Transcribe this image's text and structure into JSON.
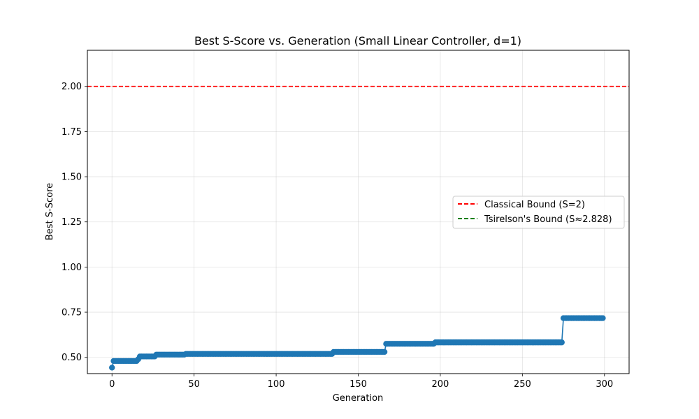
{
  "chart_data": {
    "type": "line",
    "title": "Best S-Score vs. Generation (Small Linear Controller, d=1)",
    "xlabel": "Generation",
    "ylabel": "Best S-Score",
    "xlim": [
      -15,
      315
    ],
    "ylim": [
      0.41,
      2.2
    ],
    "xticks": [
      "0",
      "50",
      "100",
      "150",
      "200",
      "250",
      "300"
    ],
    "yticks": [
      "0.50",
      "0.75",
      "1.00",
      "1.25",
      "1.50",
      "1.75",
      "2.00"
    ],
    "grid": true,
    "legend_position": "center-right",
    "series": [
      {
        "color": "#1f77b4",
        "marker": "circle",
        "segments": [
          {
            "from": 0,
            "to": 0,
            "value": 0.443
          },
          {
            "from": 1,
            "to": 15,
            "value": 0.48
          },
          {
            "from": 16,
            "to": 16,
            "value": 0.49
          },
          {
            "from": 17,
            "to": 26,
            "value": 0.505
          },
          {
            "from": 27,
            "to": 44,
            "value": 0.515
          },
          {
            "from": 45,
            "to": 134,
            "value": 0.519
          },
          {
            "from": 135,
            "to": 166,
            "value": 0.53
          },
          {
            "from": 167,
            "to": 196,
            "value": 0.575
          },
          {
            "from": 197,
            "to": 274,
            "value": 0.583
          },
          {
            "from": 275,
            "to": 299,
            "value": 0.717
          }
        ]
      }
    ],
    "reference_lines": [
      {
        "name": "Classical Bound (S=2)",
        "value": 2.0,
        "color": "#ff0000",
        "style": "dashed"
      },
      {
        "name": "Tsirelson's Bound (S≈2.828)",
        "value": 2.828,
        "color": "#008000",
        "style": "dashed"
      }
    ]
  }
}
